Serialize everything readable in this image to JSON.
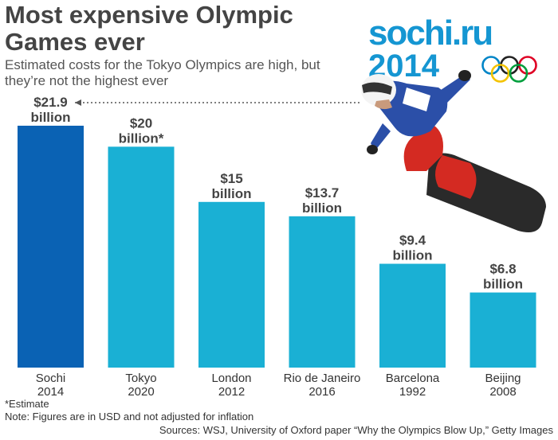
{
  "header": {
    "title": "Most expensive Olympic Games ever",
    "subtitle": "Estimated costs for the Tokyo Olympics are high, but they’re not the highest ever"
  },
  "logo": {
    "line1": "sochi.ru",
    "line2": "2014"
  },
  "chart_data": {
    "type": "bar",
    "categories": [
      [
        "Sochi",
        "2014"
      ],
      [
        "Tokyo",
        "2020"
      ],
      [
        "London",
        "2012"
      ],
      [
        "Rio de Janeiro",
        "2016"
      ],
      [
        "Barcelona",
        "1992"
      ],
      [
        "Beijing",
        "2008"
      ]
    ],
    "values": [
      21.9,
      20,
      15,
      13.7,
      9.4,
      6.8
    ],
    "value_labels": [
      [
        "$21.9",
        "billion"
      ],
      [
        "$20",
        "billion*"
      ],
      [
        "$15",
        "billion"
      ],
      [
        "$13.7",
        "billion"
      ],
      [
        "$9.4",
        "billion"
      ],
      [
        "$6.8",
        "billion"
      ]
    ],
    "ylim": [
      0,
      21.9
    ],
    "colors": {
      "highlight": "#0a62b4",
      "default": "#1ab0d4",
      "label": "#444444",
      "arrow": "#555555"
    },
    "highlight_index": 0,
    "grid": false,
    "legend": "none"
  },
  "notes": {
    "estimate": "*Estimate",
    "note": "Note: Figures are in USD and not adjusted for inflation",
    "sources": "Sources: WSJ, University of Oxford paper “Why the Olympics Blow Up,” Getty Images"
  },
  "image": {
    "subject": "snowboarder-photo",
    "colors": {
      "jacket": "#2b4fa8",
      "pants": "#d42a22",
      "board": "#2a2a2a"
    }
  },
  "rings_colors": [
    "#0085c7",
    "#222222",
    "#df0024",
    "#f4c300",
    "#009f3d"
  ]
}
